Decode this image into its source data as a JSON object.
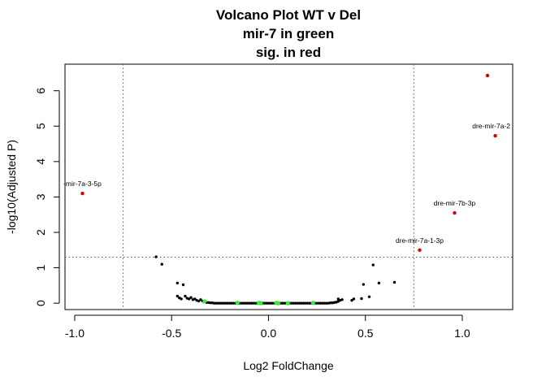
{
  "chart_data": {
    "type": "scatter",
    "title_lines": [
      "Volcano Plot WT v Del",
      "mir-7 in green",
      "sig. in red"
    ],
    "xlabel": "Log2 FoldChange",
    "ylabel": "-log10(Adjusted P)",
    "xlim": [
      -1.05,
      1.26
    ],
    "ylim": [
      -0.18,
      6.75
    ],
    "xticks": [
      -1.0,
      -0.5,
      0.0,
      0.5,
      1.0
    ],
    "xtick_labels": [
      "-1.0",
      "-0.5",
      "0.0",
      "0.5",
      "1.0"
    ],
    "yticks": [
      0,
      1,
      2,
      3,
      4,
      5,
      6
    ],
    "ytick_labels": [
      "0",
      "1",
      "2",
      "3",
      "4",
      "5",
      "6"
    ],
    "thresholds": {
      "fc_lines": [
        -0.75,
        0.75
      ],
      "p_line": 1.3
    },
    "colors": {
      "ns": "#000000",
      "mir7": "#33ee33",
      "sig": "#dd0000",
      "threshold_line": "#555555"
    },
    "grid": false,
    "series_black": [
      [
        -0.58,
        1.31
      ],
      [
        -0.55,
        1.1
      ],
      [
        -0.47,
        0.57
      ],
      [
        -0.44,
        0.52
      ],
      [
        -0.47,
        0.2
      ],
      [
        -0.46,
        0.15
      ],
      [
        -0.45,
        0.12
      ],
      [
        -0.43,
        0.2
      ],
      [
        -0.42,
        0.14
      ],
      [
        -0.41,
        0.12
      ],
      [
        -0.4,
        0.16
      ],
      [
        -0.39,
        0.1
      ],
      [
        -0.38,
        0.12
      ],
      [
        -0.37,
        0.08
      ],
      [
        -0.36,
        0.06
      ],
      [
        -0.35,
        0.1
      ],
      [
        -0.34,
        0.06
      ],
      [
        -0.33,
        0.03
      ],
      [
        -0.32,
        0.02
      ],
      [
        -0.31,
        0.02
      ],
      [
        -0.3,
        0.01
      ],
      [
        -0.29,
        0.01
      ],
      [
        -0.28,
        0.0
      ],
      [
        -0.27,
        0.0
      ],
      [
        -0.26,
        0.0
      ],
      [
        -0.25,
        0.0
      ],
      [
        -0.24,
        0.0
      ],
      [
        -0.23,
        0.0
      ],
      [
        -0.22,
        0.0
      ],
      [
        -0.21,
        0.0
      ],
      [
        -0.2,
        0.0
      ],
      [
        -0.19,
        0.0
      ],
      [
        -0.18,
        0.0
      ],
      [
        -0.17,
        0.0
      ],
      [
        -0.15,
        0.0
      ],
      [
        -0.14,
        0.0
      ],
      [
        -0.13,
        0.0
      ],
      [
        -0.12,
        0.0
      ],
      [
        -0.11,
        0.0
      ],
      [
        -0.1,
        0.0
      ],
      [
        -0.09,
        0.0
      ],
      [
        -0.08,
        0.0
      ],
      [
        -0.07,
        0.0
      ],
      [
        -0.06,
        0.0
      ],
      [
        -0.05,
        0.0
      ],
      [
        -0.04,
        0.0
      ],
      [
        -0.03,
        0.0
      ],
      [
        -0.02,
        0.0
      ],
      [
        -0.01,
        0.0
      ],
      [
        0.0,
        0.0
      ],
      [
        0.01,
        0.0
      ],
      [
        0.02,
        0.0
      ],
      [
        0.03,
        0.0
      ],
      [
        0.04,
        0.0
      ],
      [
        0.06,
        0.0
      ],
      [
        0.07,
        0.0
      ],
      [
        0.08,
        0.0
      ],
      [
        0.09,
        0.0
      ],
      [
        0.11,
        0.0
      ],
      [
        0.12,
        0.0
      ],
      [
        0.13,
        0.0
      ],
      [
        0.14,
        0.0
      ],
      [
        0.15,
        0.0
      ],
      [
        0.16,
        0.0
      ],
      [
        0.17,
        0.0
      ],
      [
        0.18,
        0.0
      ],
      [
        0.19,
        0.0
      ],
      [
        0.2,
        0.0
      ],
      [
        0.21,
        0.0
      ],
      [
        0.22,
        0.0
      ],
      [
        0.24,
        0.0
      ],
      [
        0.25,
        0.0
      ],
      [
        0.26,
        0.0
      ],
      [
        0.27,
        0.0
      ],
      [
        0.28,
        0.0
      ],
      [
        0.29,
        0.0
      ],
      [
        0.3,
        0.0
      ],
      [
        0.31,
        0.0
      ],
      [
        0.32,
        0.01
      ],
      [
        0.33,
        0.01
      ],
      [
        0.34,
        0.02
      ],
      [
        0.35,
        0.03
      ],
      [
        0.36,
        0.05
      ],
      [
        0.37,
        0.08
      ],
      [
        0.38,
        0.1
      ],
      [
        0.36,
        0.12
      ],
      [
        0.43,
        0.08
      ],
      [
        0.44,
        0.12
      ],
      [
        0.48,
        0.13
      ],
      [
        0.49,
        0.53
      ],
      [
        0.52,
        0.18
      ],
      [
        0.54,
        1.08
      ],
      [
        0.57,
        0.57
      ],
      [
        0.65,
        0.59
      ]
    ],
    "series_green": [
      [
        -0.33,
        0.05
      ],
      [
        -0.16,
        0.01
      ],
      [
        -0.05,
        0.01
      ],
      [
        -0.04,
        0.0
      ],
      [
        0.04,
        0.01
      ],
      [
        0.05,
        0.0
      ],
      [
        0.1,
        0.0
      ],
      [
        0.23,
        0.01
      ]
    ],
    "series_red": [
      {
        "x": -0.96,
        "y": 3.1,
        "label": "-mir-7a-3-5p"
      },
      {
        "x": 1.13,
        "y": 6.43,
        "label": ""
      },
      {
        "x": 1.17,
        "y": 4.73,
        "label": "dre-mir-7a-2"
      },
      {
        "x": 0.96,
        "y": 2.55,
        "label": "dre-mir-7b-3p"
      },
      {
        "x": 0.78,
        "y": 1.5,
        "label": "dre-mir-7a-1-3p"
      }
    ]
  }
}
